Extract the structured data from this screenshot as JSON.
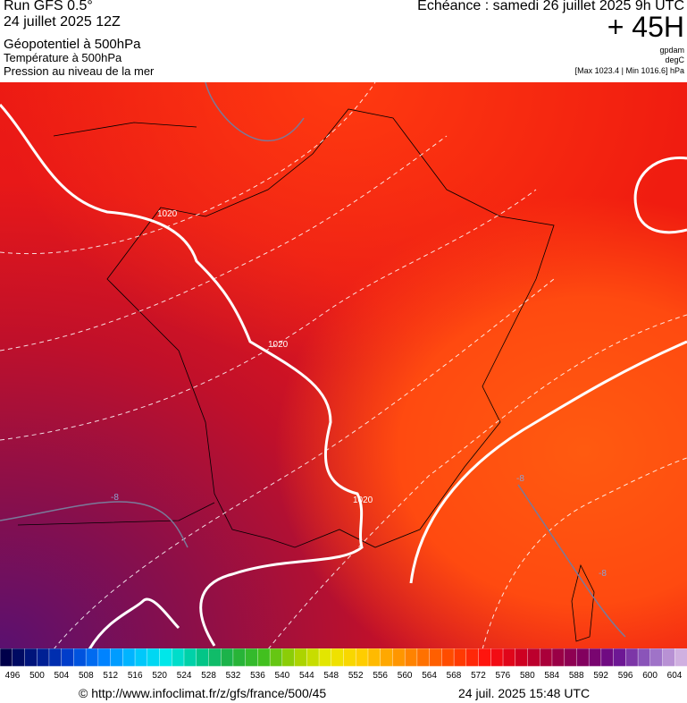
{
  "header": {
    "run": "Run GFS 0.5°",
    "run_date": "24 juillet 2025 12Z",
    "field1": "Géopotentiel à 500hPa",
    "field2": "Température à 500hPa",
    "field3": "Pression au niveau de la mer",
    "valid": "Echéance : samedi 26 juillet 2025 9h UTC",
    "lead": "+ 45H",
    "unit1": "gpdam",
    "unit2": "degC",
    "pressure_range": "[Max 1023.4 | Min 1016.6] hPa"
  },
  "map": {
    "contour_labels": [
      "1020",
      "1020",
      "1020",
      "-8",
      "-8",
      "-8"
    ]
  },
  "colorbar": {
    "labels": [
      496,
      500,
      504,
      508,
      512,
      516,
      520,
      524,
      528,
      532,
      536,
      540,
      544,
      548,
      552,
      556,
      560,
      564,
      568,
      572,
      576,
      580,
      584,
      588,
      592,
      596,
      600,
      604
    ]
  },
  "footer": {
    "source": "© http://www.infoclimat.fr/z/gfs/france/500/45",
    "timestamp": "24 juil. 2025 15:48 UTC"
  }
}
